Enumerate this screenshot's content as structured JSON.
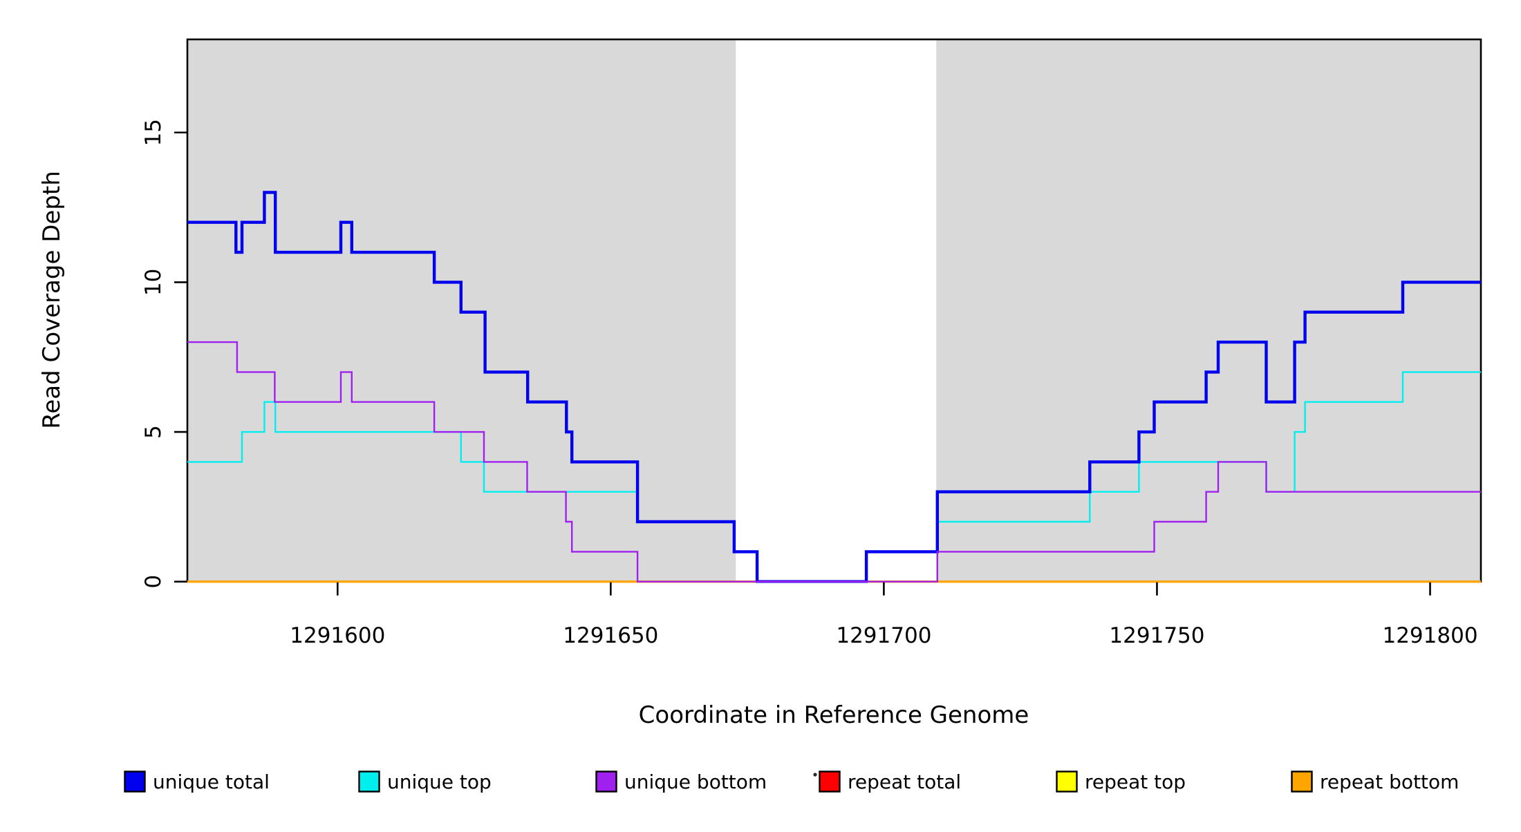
{
  "chart_data": {
    "type": "line",
    "subtype": "step-coverage",
    "title": "",
    "xlabel": "Coordinate in Reference Genome",
    "ylabel": "Read Coverage Depth",
    "xlim": [
      1291572.5,
      1291809.3
    ],
    "ylim": [
      0,
      18.11
    ],
    "grid": false,
    "x_ticks": [
      1291600,
      1291650,
      1291700,
      1291750,
      1291800
    ],
    "y_ticks": [
      0,
      5,
      10,
      15
    ],
    "shaded_regions": [
      {
        "from": 1291572.5,
        "to": 1291672.9,
        "color": "#d9d9d9"
      },
      {
        "from": 1291709.6,
        "to": 1291809.3,
        "color": "#d9d9d9"
      }
    ],
    "series": [
      {
        "name": "repeat total",
        "color": "#ff0000",
        "width": 2.5,
        "steps": [
          [
            1291572.5,
            0
          ]
        ]
      },
      {
        "name": "repeat top",
        "color": "#ffff00",
        "width": 2.5,
        "steps": [
          [
            1291572.5,
            0
          ]
        ]
      },
      {
        "name": "repeat bottom",
        "color": "#ffa500",
        "width": 3.4,
        "steps": [
          [
            1291572.5,
            0
          ]
        ]
      },
      {
        "name": "unique top",
        "color": "#00eeee",
        "width": 2.4,
        "steps": [
          [
            1291572.5,
            4
          ],
          [
            1291582.5,
            5
          ],
          [
            1291586.6,
            6
          ],
          [
            1291588.6,
            5
          ],
          [
            1291622.6,
            4
          ],
          [
            1291626.8,
            3
          ],
          [
            1291654.9,
            2
          ],
          [
            1291672.6,
            1
          ],
          [
            1291676.8,
            0
          ],
          [
            1291696.8,
            1
          ],
          [
            1291709.8,
            2
          ],
          [
            1291737.7,
            3
          ],
          [
            1291746.7,
            4
          ],
          [
            1291770.0,
            3
          ],
          [
            1291775.2,
            5
          ],
          [
            1291777.1,
            6
          ],
          [
            1291795.0,
            7
          ]
        ]
      },
      {
        "name": "unique total",
        "color": "#0000ee",
        "width": 4.4,
        "steps": [
          [
            1291572.5,
            12
          ],
          [
            1291581.4,
            11
          ],
          [
            1291582.5,
            12
          ],
          [
            1291586.6,
            13
          ],
          [
            1291588.6,
            11
          ],
          [
            1291600.6,
            12
          ],
          [
            1291602.6,
            11
          ],
          [
            1291617.7,
            10
          ],
          [
            1291622.6,
            9
          ],
          [
            1291627.0,
            7
          ],
          [
            1291634.8,
            6
          ],
          [
            1291641.9,
            5
          ],
          [
            1291642.9,
            4
          ],
          [
            1291654.9,
            2
          ],
          [
            1291672.6,
            1
          ],
          [
            1291676.8,
            0
          ],
          [
            1291696.8,
            1
          ],
          [
            1291709.8,
            3
          ],
          [
            1291737.7,
            4
          ],
          [
            1291746.7,
            5
          ],
          [
            1291749.5,
            6
          ],
          [
            1291759.0,
            7
          ],
          [
            1291761.2,
            8
          ],
          [
            1291770.0,
            6
          ],
          [
            1291775.2,
            8
          ],
          [
            1291777.1,
            9
          ],
          [
            1291795.0,
            10
          ]
        ]
      },
      {
        "name": "unique bottom",
        "color": "#a020f0",
        "width": 2.4,
        "steps": [
          [
            1291572.5,
            8
          ],
          [
            1291581.6,
            7
          ],
          [
            1291588.5,
            6
          ],
          [
            1291600.6,
            7
          ],
          [
            1291602.6,
            6
          ],
          [
            1291617.7,
            5
          ],
          [
            1291626.8,
            4
          ],
          [
            1291634.7,
            3
          ],
          [
            1291641.8,
            2
          ],
          [
            1291642.9,
            1
          ],
          [
            1291654.9,
            0
          ],
          [
            1291709.8,
            1
          ],
          [
            1291749.5,
            2
          ],
          [
            1291759.0,
            3
          ],
          [
            1291761.2,
            4
          ],
          [
            1291770.0,
            3
          ]
        ]
      }
    ],
    "legend_position": "bottom",
    "legend": [
      {
        "label": "unique total",
        "color": "#0000ee"
      },
      {
        "label": "unique top",
        "color": "#00eeee"
      },
      {
        "label": "unique bottom",
        "color": "#a020f0"
      },
      {
        "label": "repeat total",
        "color": "#ff0000"
      },
      {
        "label": "repeat top",
        "color": "#ffff00"
      },
      {
        "label": "repeat bottom",
        "color": "#ffa500"
      }
    ]
  }
}
